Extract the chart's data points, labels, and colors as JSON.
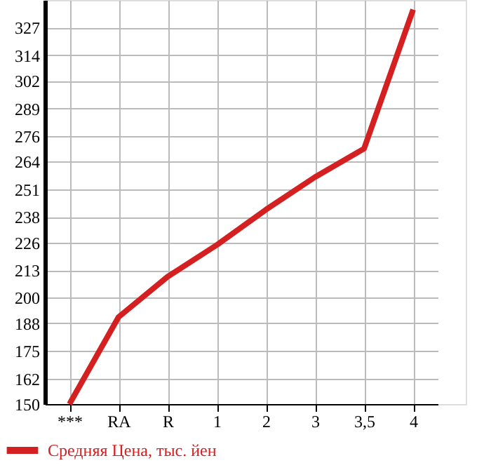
{
  "chart_data": {
    "type": "line",
    "categories": [
      "***",
      "RA",
      "R",
      "1",
      "2",
      "3",
      "3,5",
      "4"
    ],
    "series": [
      {
        "name": "Средняя Цена, тыс. йен",
        "color": "#d42020",
        "values": [
          150,
          190.9,
          209.9,
          224.8,
          241.4,
          256.7,
          270.1,
          335.5
        ]
      }
    ],
    "ylim": [
      150,
      340
    ],
    "yticks": [
      150,
      162,
      175,
      188,
      200,
      213,
      226,
      238,
      251,
      264,
      276,
      289,
      302,
      314,
      327
    ],
    "grid": true,
    "legend": "bottom left",
    "marker": "none",
    "line_style": "solid"
  }
}
